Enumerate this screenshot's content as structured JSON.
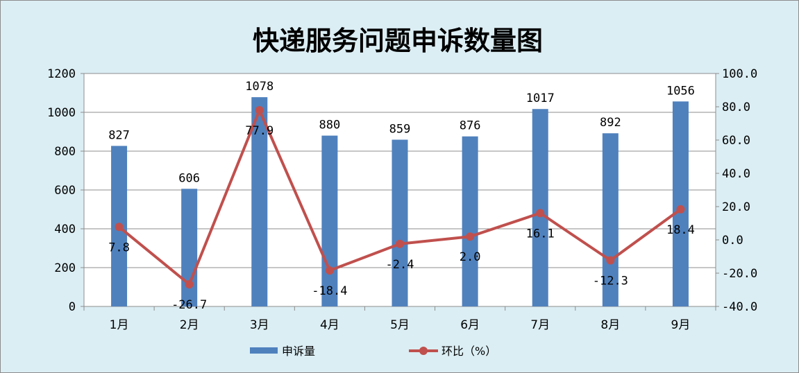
{
  "chart_data": {
    "type": "bar",
    "title": "快递服务问题申诉数量图",
    "categories": [
      "1月",
      "2月",
      "3月",
      "4月",
      "5月",
      "6月",
      "7月",
      "8月",
      "9月"
    ],
    "series": [
      {
        "name": "申诉量",
        "type": "bar",
        "axis": "left",
        "color": "#4f81bd",
        "values": [
          827,
          606,
          1078,
          880,
          859,
          876,
          1017,
          892,
          1056
        ],
        "labels": [
          "827",
          "606",
          "1078",
          "880",
          "859",
          "876",
          "1017",
          "892",
          "1056"
        ]
      },
      {
        "name": "环比（%）",
        "type": "line",
        "axis": "right",
        "color": "#c0504d",
        "values": [
          7.8,
          -26.7,
          77.9,
          -18.4,
          -2.4,
          2.0,
          16.1,
          -12.3,
          18.4
        ],
        "labels": [
          "7.8",
          "-26.7",
          "77.9",
          "-18.4",
          "-2.4",
          "2.0",
          "16.1",
          "-12.3",
          "18.4"
        ]
      }
    ],
    "ylim": [
      0,
      1200
    ],
    "yticks": [
      "0",
      "200",
      "400",
      "600",
      "800",
      "1000",
      "1200"
    ],
    "y2lim": [
      -40,
      100
    ],
    "y2ticks": [
      "-40.0",
      "-20.0",
      "0.0",
      "20.0",
      "40.0",
      "60.0",
      "80.0",
      "100.0"
    ],
    "grid": true,
    "legend_position": "bottom",
    "background": "#dbeef4",
    "plot_background": "#ffffff"
  }
}
